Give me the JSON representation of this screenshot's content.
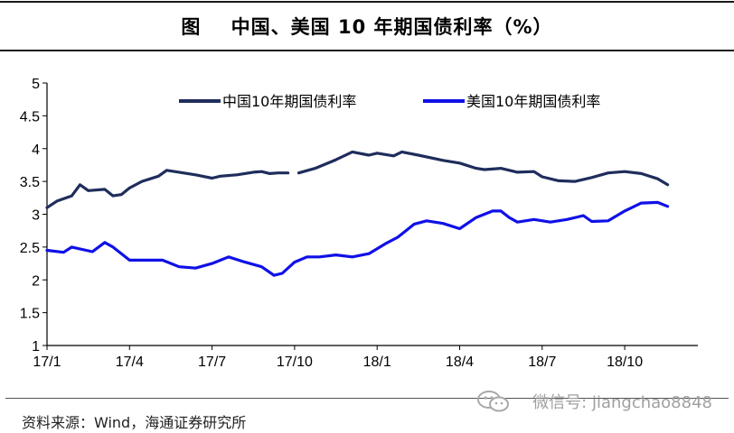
{
  "header": {
    "title": "图    中国、美国 10 年期国债利率（%）"
  },
  "chart_data": {
    "type": "line",
    "categories": [
      "17/1",
      "17/4",
      "17/7",
      "17/10",
      "18/1",
      "18/4",
      "18/7",
      "18/10"
    ],
    "y_ticks": [
      "1",
      "1.5",
      "2",
      "2.5",
      "3",
      "3.5",
      "4",
      "4.5",
      "5"
    ],
    "ylim": [
      1,
      5
    ],
    "grid": false,
    "legend_position": "top",
    "series": [
      {
        "name": "中国10年期国债利率",
        "color": "#1f2d5c",
        "points": [
          [
            0,
            3.1
          ],
          [
            0.12,
            3.2
          ],
          [
            0.3,
            3.28
          ],
          [
            0.4,
            3.45
          ],
          [
            0.5,
            3.36
          ],
          [
            0.7,
            3.38
          ],
          [
            0.8,
            3.28
          ],
          [
            0.9,
            3.3
          ],
          [
            1.0,
            3.4
          ],
          [
            1.15,
            3.5
          ],
          [
            1.35,
            3.58
          ],
          [
            1.45,
            3.67
          ],
          [
            1.6,
            3.64
          ],
          [
            1.8,
            3.6
          ],
          [
            2.0,
            3.55
          ],
          [
            2.1,
            3.58
          ],
          [
            2.3,
            3.6
          ],
          [
            2.5,
            3.64
          ],
          [
            2.6,
            3.65
          ],
          [
            2.7,
            3.62
          ],
          [
            2.8,
            3.63
          ],
          [
            2.92,
            3.63
          ],
          [
            3.05,
            3.63
          ],
          [
            3.25,
            3.7
          ],
          [
            3.5,
            3.83
          ],
          [
            3.7,
            3.95
          ],
          [
            3.9,
            3.9
          ],
          [
            4.0,
            3.93
          ],
          [
            4.2,
            3.89
          ],
          [
            4.3,
            3.95
          ],
          [
            4.5,
            3.9
          ],
          [
            4.8,
            3.82
          ],
          [
            5.0,
            3.78
          ],
          [
            5.2,
            3.7
          ],
          [
            5.3,
            3.68
          ],
          [
            5.5,
            3.7
          ],
          [
            5.7,
            3.64
          ],
          [
            5.9,
            3.65
          ],
          [
            6.0,
            3.57
          ],
          [
            6.2,
            3.51
          ],
          [
            6.4,
            3.5
          ],
          [
            6.6,
            3.56
          ],
          [
            6.8,
            3.63
          ],
          [
            7.0,
            3.65
          ],
          [
            7.2,
            3.62
          ],
          [
            7.4,
            3.54
          ],
          [
            7.52,
            3.45
          ]
        ],
        "gaps": [
          [
            2.95,
            3.0
          ],
          [
            4.4,
            4.48
          ]
        ]
      },
      {
        "name": "美国10年期国债利率",
        "color": "#1010e8",
        "points": [
          [
            0,
            2.45
          ],
          [
            0.2,
            2.42
          ],
          [
            0.3,
            2.5
          ],
          [
            0.55,
            2.43
          ],
          [
            0.7,
            2.57
          ],
          [
            0.8,
            2.5
          ],
          [
            1.0,
            2.3
          ],
          [
            1.2,
            2.3
          ],
          [
            1.4,
            2.3
          ],
          [
            1.6,
            2.2
          ],
          [
            1.8,
            2.18
          ],
          [
            2.0,
            2.25
          ],
          [
            2.2,
            2.35
          ],
          [
            2.4,
            2.27
          ],
          [
            2.6,
            2.2
          ],
          [
            2.75,
            2.07
          ],
          [
            2.85,
            2.1
          ],
          [
            3.0,
            2.27
          ],
          [
            3.15,
            2.35
          ],
          [
            3.3,
            2.35
          ],
          [
            3.5,
            2.38
          ],
          [
            3.7,
            2.35
          ],
          [
            3.9,
            2.4
          ],
          [
            4.1,
            2.55
          ],
          [
            4.25,
            2.65
          ],
          [
            4.45,
            2.85
          ],
          [
            4.6,
            2.9
          ],
          [
            4.8,
            2.86
          ],
          [
            5.0,
            2.78
          ],
          [
            5.2,
            2.95
          ],
          [
            5.4,
            3.05
          ],
          [
            5.5,
            3.05
          ],
          [
            5.6,
            2.95
          ],
          [
            5.7,
            2.88
          ],
          [
            5.9,
            2.92
          ],
          [
            6.1,
            2.88
          ],
          [
            6.3,
            2.92
          ],
          [
            6.5,
            2.98
          ],
          [
            6.6,
            2.89
          ],
          [
            6.8,
            2.9
          ],
          [
            7.0,
            3.05
          ],
          [
            7.2,
            3.17
          ],
          [
            7.4,
            3.18
          ],
          [
            7.52,
            3.12
          ]
        ]
      }
    ]
  },
  "footer": {
    "source": "资料来源：Wind，海通证券研究所",
    "watermark": "微信号: jiangchao8848"
  }
}
